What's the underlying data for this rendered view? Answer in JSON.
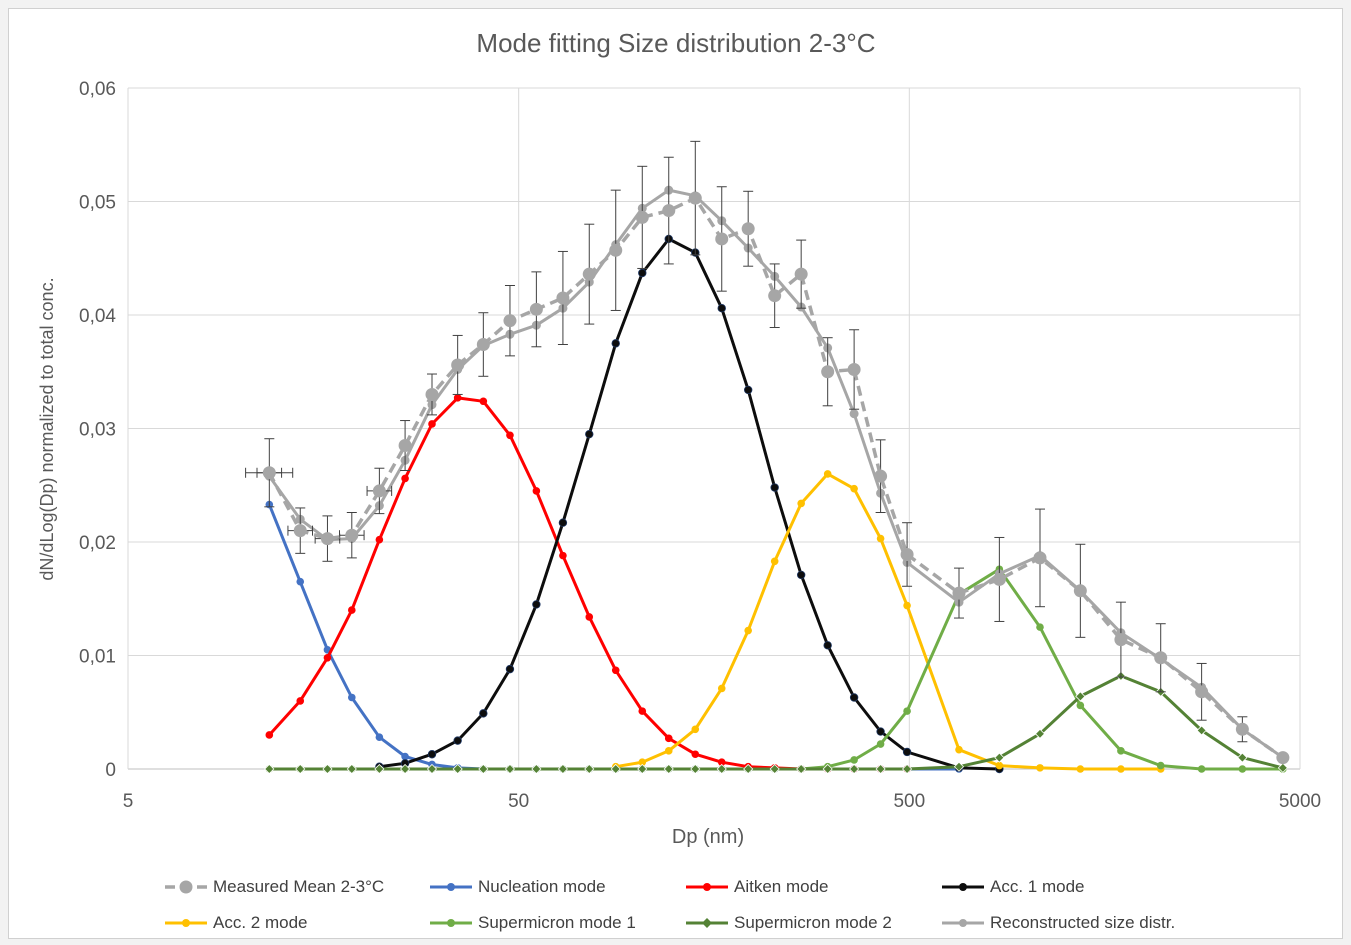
{
  "chart_data": {
    "type": "line",
    "title": "Mode fitting Size distribution 2-3°C",
    "xlabel": "Dp (nm)",
    "ylabel": "dN/dLog(Dp) normalized to total conc.",
    "xscale": "log",
    "xlim": [
      5,
      5000
    ],
    "ylim": [
      0,
      0.06
    ],
    "x_ticks": [
      {
        "value": 5,
        "label": "5"
      },
      {
        "value": 50,
        "label": "50"
      },
      {
        "value": 500,
        "label": "500"
      },
      {
        "value": 5000,
        "label": "5000"
      }
    ],
    "y_ticks": [
      {
        "value": 0,
        "label": "0"
      },
      {
        "value": 0.01,
        "label": "0,01"
      },
      {
        "value": 0.02,
        "label": "0,02"
      },
      {
        "value": 0.03,
        "label": "0,03"
      },
      {
        "value": 0.04,
        "label": "0,04"
      },
      {
        "value": 0.05,
        "label": "0,05"
      },
      {
        "value": 0.06,
        "label": "0,06"
      }
    ],
    "grid": true,
    "legend_position": "bottom",
    "series": [
      {
        "name": "Measured Mean 2-3°C",
        "color": "#a6a6a6",
        "style": "dashed",
        "marker": "circle-large",
        "x": [
          11.5,
          13.8,
          16.2,
          18.7,
          22,
          25.6,
          30,
          34.9,
          40.6,
          47.5,
          55.5,
          64.9,
          75.8,
          88.6,
          103.6,
          121.1,
          141.6,
          165.5,
          193.4,
          226.1,
          264.3,
          309,
          361.1,
          422.1,
          493.4,
          670,
          850,
          1080,
          1370,
          1740,
          2200,
          2800,
          3560,
          4520
        ],
        "y": [
          0.0261,
          0.021,
          0.0203,
          0.0206,
          0.0245,
          0.0285,
          0.033,
          0.0356,
          0.0374,
          0.0395,
          0.0405,
          0.0415,
          0.0436,
          0.0457,
          0.0486,
          0.0492,
          0.0503,
          0.0467,
          0.0476,
          0.0417,
          0.0436,
          0.035,
          0.0352,
          0.0258,
          0.0189,
          0.0155,
          0.0167,
          0.0186,
          0.0157,
          0.0114,
          0.0098,
          0.0068,
          0.0035,
          0.001
        ],
        "yerr": [
          0.003,
          0.002,
          0.002,
          0.002,
          0.002,
          0.0022,
          0.0018,
          0.0026,
          0.0028,
          0.0031,
          0.0033,
          0.0041,
          0.0044,
          0.0053,
          0.0045,
          0.0047,
          0.005,
          0.0046,
          0.0033,
          0.0028,
          0.003,
          0.003,
          0.0035,
          0.0032,
          0.0028,
          0.0022,
          0.0037,
          0.0043,
          0.0041,
          0.0033,
          0.003,
          0.0025,
          0.0011,
          0.0002
        ],
        "xerr_first": [
          10.0,
          13.2
        ]
      },
      {
        "name": "Nucleation mode",
        "color": "#4472c4",
        "marker": "circle",
        "x": [
          11.5,
          13.8,
          16.2,
          18.7,
          22,
          25.6,
          30,
          34.9,
          40.6,
          47.5,
          55.5,
          64.9,
          75.8,
          88.6,
          103.6,
          121.1,
          141.6,
          165.5,
          193.4,
          226.1,
          264.3,
          309,
          361.1,
          422.1,
          493.4,
          670
        ],
        "y": [
          0.0233,
          0.0165,
          0.0105,
          0.0063,
          0.0028,
          0.0011,
          0.0004,
          0.0001,
          0,
          0,
          0,
          0,
          0,
          0,
          0,
          0,
          0,
          0,
          0,
          0,
          0,
          0,
          0,
          0,
          0,
          0
        ]
      },
      {
        "name": "Aitken mode",
        "color": "#ff0000",
        "marker": "circle",
        "x": [
          11.5,
          13.8,
          16.2,
          18.7,
          22,
          25.6,
          30,
          34.9,
          40.6,
          47.5,
          55.5,
          64.9,
          75.8,
          88.6,
          103.6,
          121.1,
          141.6,
          165.5,
          193.4,
          226.1,
          264.3,
          309,
          361.1,
          422.1,
          493.4
        ],
        "y": [
          0.003,
          0.006,
          0.0098,
          0.014,
          0.0202,
          0.0256,
          0.0304,
          0.0327,
          0.0324,
          0.0294,
          0.0245,
          0.0188,
          0.0134,
          0.0087,
          0.0051,
          0.0027,
          0.0013,
          0.0006,
          0.0002,
          0.0001,
          0,
          0,
          0,
          0,
          0
        ]
      },
      {
        "name": "Acc. 1 mode",
        "color": "#0d0d0d",
        "marker": "circle",
        "x": [
          22,
          25.6,
          30,
          34.9,
          40.6,
          47.5,
          55.5,
          64.9,
          75.8,
          88.6,
          103.6,
          121.1,
          141.6,
          165.5,
          193.4,
          226.1,
          264.3,
          309,
          361.1,
          422.1,
          493.4,
          670,
          850
        ],
        "y": [
          0.0002,
          0.0005,
          0.0013,
          0.0025,
          0.0049,
          0.0088,
          0.0145,
          0.0217,
          0.0295,
          0.0375,
          0.0437,
          0.0467,
          0.0455,
          0.0406,
          0.0334,
          0.0248,
          0.0171,
          0.0109,
          0.0063,
          0.0033,
          0.0015,
          0.0001,
          0
        ]
      },
      {
        "name": "Acc. 2 mode",
        "color": "#ffc000",
        "marker": "circle",
        "x": [
          88.6,
          103.6,
          121.1,
          141.6,
          165.5,
          193.4,
          226.1,
          264.3,
          309,
          361.1,
          422.1,
          493.4,
          670,
          850,
          1080,
          1370,
          1740,
          2200
        ],
        "y": [
          0.0002,
          0.0006,
          0.0016,
          0.0035,
          0.0071,
          0.0122,
          0.0183,
          0.0234,
          0.026,
          0.0247,
          0.0203,
          0.0144,
          0.0017,
          0.0003,
          0.0001,
          0,
          0,
          0
        ]
      },
      {
        "name": "Supermicron mode 1",
        "color": "#70ad47",
        "marker": "circle",
        "x": [
          11.5,
          13.8,
          16.2,
          18.7,
          22,
          25.6,
          30,
          34.9,
          40.6,
          47.5,
          55.5,
          64.9,
          75.8,
          88.6,
          103.6,
          121.1,
          141.6,
          165.5,
          193.4,
          226.1,
          264.3,
          309,
          361.1,
          422.1,
          493.4,
          670,
          850,
          1080,
          1370,
          1740,
          2200,
          2800,
          3560,
          4520
        ],
        "y": [
          0,
          0,
          0,
          0,
          0,
          0,
          0,
          0,
          0,
          0,
          0,
          0,
          0,
          0,
          0,
          0,
          0,
          0,
          0,
          0,
          0,
          0.0002,
          0.0008,
          0.0022,
          0.0051,
          0.0154,
          0.0176,
          0.0125,
          0.0056,
          0.0016,
          0.0003,
          0,
          0,
          0
        ]
      },
      {
        "name": "Supermicron mode 2",
        "color": "#548235",
        "marker": "diamond",
        "x": [
          11.5,
          13.8,
          16.2,
          18.7,
          22,
          25.6,
          30,
          34.9,
          40.6,
          47.5,
          55.5,
          64.9,
          75.8,
          88.6,
          103.6,
          121.1,
          141.6,
          165.5,
          193.4,
          226.1,
          264.3,
          309,
          361.1,
          422.1,
          493.4,
          670,
          850,
          1080,
          1370,
          1740,
          2200,
          2800,
          3560,
          4520
        ],
        "y": [
          0,
          0,
          0,
          0,
          0,
          0,
          0,
          0,
          0,
          0,
          0,
          0,
          0,
          0,
          0,
          0,
          0,
          0,
          0,
          0,
          0,
          0,
          0,
          0,
          0,
          0.0002,
          0.001,
          0.0031,
          0.0064,
          0.0082,
          0.0068,
          0.0034,
          0.001,
          0.0001
        ]
      },
      {
        "name": "Reconstructed size distr.",
        "color": "#a6a6a6",
        "marker": "circle",
        "x": [
          11.5,
          13.8,
          16.2,
          18.7,
          22,
          25.6,
          30,
          34.9,
          40.6,
          47.5,
          55.5,
          64.9,
          75.8,
          88.6,
          103.6,
          121.1,
          141.6,
          165.5,
          193.4,
          226.1,
          264.3,
          309,
          361.1,
          422.1,
          493.4,
          670,
          850,
          1080,
          1370,
          1740,
          2200,
          2800,
          3560,
          4520
        ],
        "y": [
          0.0258,
          0.022,
          0.0202,
          0.0203,
          0.0232,
          0.0272,
          0.0321,
          0.0352,
          0.0373,
          0.0383,
          0.0391,
          0.0406,
          0.0429,
          0.0462,
          0.0494,
          0.051,
          0.0505,
          0.0483,
          0.0459,
          0.0434,
          0.0407,
          0.0371,
          0.0313,
          0.0243,
          0.0182,
          0.0147,
          0.0172,
          0.0188,
          0.0157,
          0.012,
          0.0097,
          0.0072,
          0.0035,
          0.001
        ]
      }
    ]
  }
}
